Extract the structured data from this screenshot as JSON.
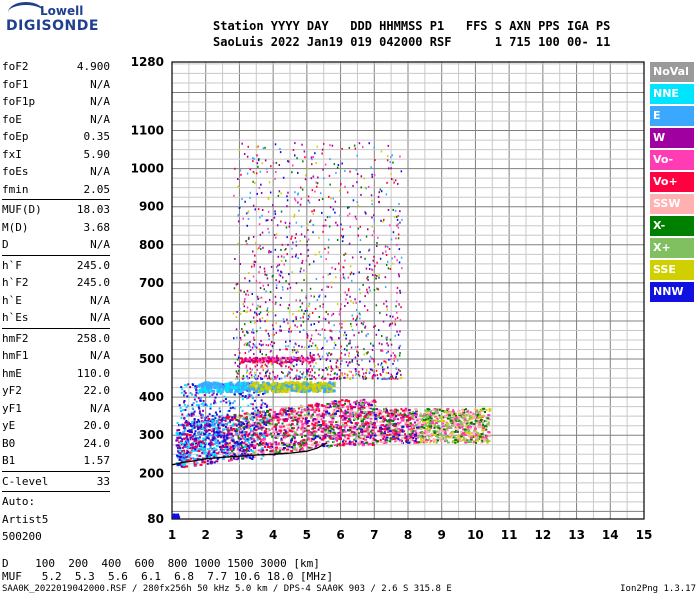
{
  "logo": {
    "line1": "Lowell",
    "line2": "DIGISONDE"
  },
  "header": {
    "line1": "Station YYYY DAY   DDD HHMMSS P1   FFS S AXN PPS IGA PS",
    "line2": "SaoLuis 2022 Jan19 019 042000 RSF      1 715 100 00- 11"
  },
  "parameters": [
    {
      "group": 1,
      "items": [
        {
          "name": "foF2",
          "value": "4.900"
        },
        {
          "name": "foF1",
          "value": "N/A"
        },
        {
          "name": "foF1p",
          "value": "N/A"
        },
        {
          "name": "foE",
          "value": "N/A"
        },
        {
          "name": "foEp",
          "value": "0.35"
        },
        {
          "name": "fxI",
          "value": "5.90"
        },
        {
          "name": "foEs",
          "value": "N/A"
        },
        {
          "name": "fmin",
          "value": "2.05"
        }
      ]
    },
    {
      "group": 2,
      "items": [
        {
          "name": "MUF(D)",
          "value": "18.03"
        },
        {
          "name": "M(D)",
          "value": "3.68"
        },
        {
          "name": "D",
          "value": "N/A"
        }
      ]
    },
    {
      "group": 3,
      "items": [
        {
          "name": "h`F",
          "value": "245.0"
        },
        {
          "name": "h`F2",
          "value": "245.0"
        },
        {
          "name": "h`E",
          "value": "N/A"
        },
        {
          "name": "h`Es",
          "value": "N/A"
        }
      ]
    },
    {
      "group": 4,
      "items": [
        {
          "name": "hmF2",
          "value": "258.0"
        },
        {
          "name": "hmF1",
          "value": "N/A"
        },
        {
          "name": "hmE",
          "value": "110.0"
        },
        {
          "name": "yF2",
          "value": "22.0"
        },
        {
          "name": "yF1",
          "value": "N/A"
        },
        {
          "name": "yE",
          "value": "20.0"
        },
        {
          "name": "B0",
          "value": "24.0"
        },
        {
          "name": "B1",
          "value": "1.57"
        }
      ]
    },
    {
      "group": 5,
      "items": [
        {
          "name": "C-level",
          "value": "33"
        }
      ]
    },
    {
      "group": 6,
      "items": [
        {
          "name": "Auto:",
          "value": ""
        },
        {
          "name": "Artist5",
          "value": ""
        },
        {
          "name": "500200",
          "value": ""
        }
      ]
    }
  ],
  "footer": {
    "d_line": "D    100  200  400  600  800 1000 1500 3000 [km]",
    "muf_line": "MUF   5.2  5.3  5.6  6.1  6.8  7.7 10.6 18.0 [MHz]",
    "filename": "SAA0K_2022019042000.RSF / 280fx256h 50 kHz 5.0 km / DPS-4 SAA0K 903 / 2.6 S 315.8 E",
    "version": "Ion2Png 1.3.17"
  },
  "legend": [
    {
      "label": "NoVal",
      "color": "#9a9a9a"
    },
    {
      "label": "NNE",
      "color": "#00e5ff"
    },
    {
      "label": "E",
      "color": "#3aa8ff"
    },
    {
      "label": "W",
      "color": "#a000a0"
    },
    {
      "label": "Vo-",
      "color": "#ff3cb4"
    },
    {
      "label": "Vo+",
      "color": "#ff0040"
    },
    {
      "label": "SSW",
      "color": "#ffb0b0"
    },
    {
      "label": "X-",
      "color": "#008000"
    },
    {
      "label": "X+",
      "color": "#80c060"
    },
    {
      "label": "SSE",
      "color": "#d0d000"
    },
    {
      "label": "NNW",
      "color": "#1010e0"
    }
  ],
  "chart_data": {
    "type": "scatter",
    "x_ticks": [
      "1",
      "2",
      "3",
      "4",
      "5",
      "6",
      "7",
      "8",
      "9",
      "10",
      "11",
      "12",
      "13",
      "14",
      "15"
    ],
    "y_ticks": [
      "80",
      "200",
      "300",
      "400",
      "500",
      "600",
      "700",
      "800",
      "900",
      "1000",
      "1100",
      "1280"
    ],
    "xlim": [
      1,
      15
    ],
    "ylim": [
      80,
      1280
    ],
    "grid": true,
    "trace_curve": [
      [
        1.0,
        222
      ],
      [
        1.3,
        228
      ],
      [
        1.6,
        232
      ],
      [
        2.0,
        238
      ],
      [
        2.5,
        242
      ],
      [
        3.0,
        245
      ],
      [
        3.5,
        248
      ],
      [
        4.0,
        250
      ],
      [
        4.5,
        253
      ],
      [
        5.0,
        258
      ],
      [
        5.3,
        266
      ],
      [
        5.6,
        280
      ]
    ],
    "echo_regions": [
      {
        "name": "F-layer main trace",
        "x": [
          1.1,
          10.4
        ],
        "y": [
          230,
          400
        ]
      },
      {
        "name": "second hop band",
        "x": [
          1.8,
          5.8
        ],
        "y": [
          415,
          445
        ]
      },
      {
        "name": "spread echoes",
        "x": [
          2.8,
          7.8
        ],
        "y": [
          450,
          1100
        ]
      }
    ]
  }
}
